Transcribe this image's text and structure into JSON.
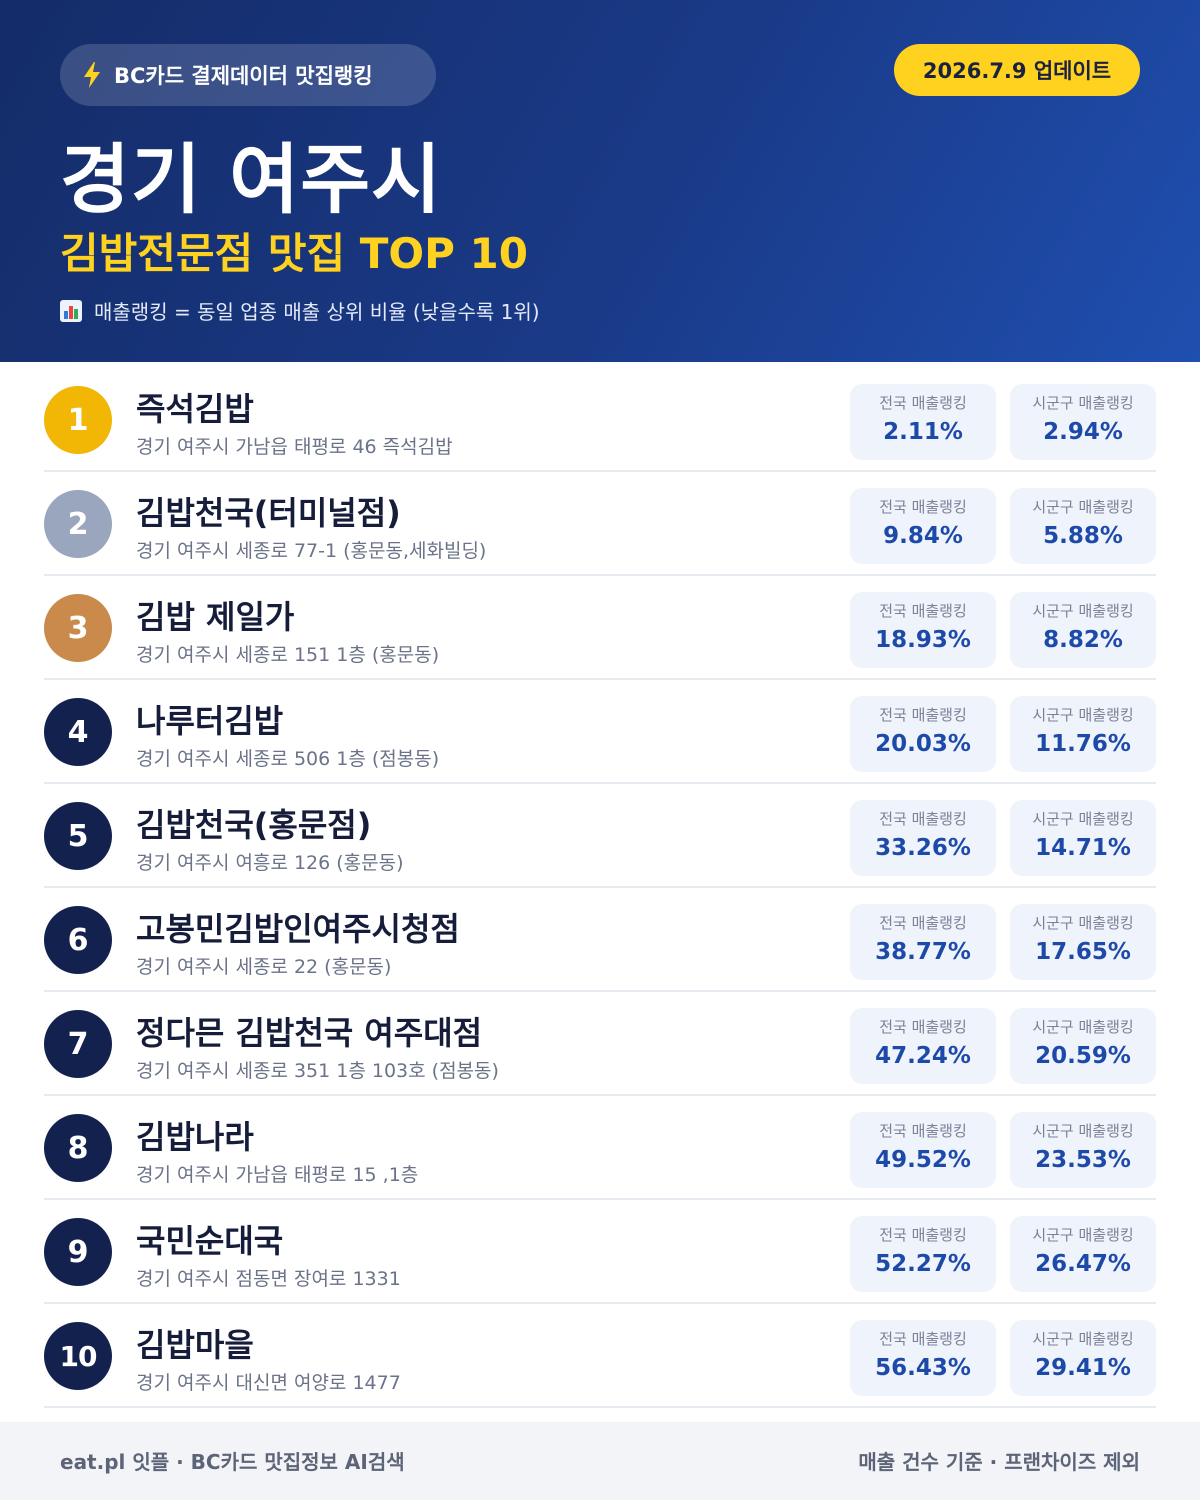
{
  "header": {
    "source_label": "BC카드 결제데이터 맛집랭킹",
    "update_label": "2026.7.9 업데이트",
    "title": "경기 여주시",
    "subtitle": "김밥전문점 맛집 TOP 10",
    "note": "매출랭킹 = 동일 업종 매출 상위 비율 (낮을수록 1위)",
    "icons": {
      "source": "lightning-bolt-icon",
      "note": "bar-chart-icon"
    }
  },
  "colors": {
    "gold": "#f2b705",
    "silver": "#9aa6bd",
    "bronze": "#c98a4b",
    "navy": "#13214f",
    "accent_yellow": "#ffd21f",
    "value_blue": "#1d4aa8"
  },
  "stat_labels": {
    "national": "전국 매출랭킹",
    "local": "시군구 매출랭킹"
  },
  "restaurants": [
    {
      "rank": "1",
      "name": "즉석김밥",
      "address": "경기 여주시 가남읍 태평로 46 즉석김밥",
      "national": "2.11%",
      "local": "2.94%"
    },
    {
      "rank": "2",
      "name": "김밥천국(터미널점)",
      "address": "경기 여주시 세종로 77-1 (홍문동,세화빌딩)",
      "national": "9.84%",
      "local": "5.88%"
    },
    {
      "rank": "3",
      "name": "김밥 제일가",
      "address": "경기 여주시 세종로 151 1층 (홍문동)",
      "national": "18.93%",
      "local": "8.82%"
    },
    {
      "rank": "4",
      "name": "나루터김밥",
      "address": "경기 여주시 세종로 506 1층 (점봉동)",
      "national": "20.03%",
      "local": "11.76%"
    },
    {
      "rank": "5",
      "name": "김밥천국(홍문점)",
      "address": "경기 여주시 여흥로 126 (홍문동)",
      "national": "33.26%",
      "local": "14.71%"
    },
    {
      "rank": "6",
      "name": "고봉민김밥인여주시청점",
      "address": "경기 여주시 세종로 22 (홍문동)",
      "national": "38.77%",
      "local": "17.65%"
    },
    {
      "rank": "7",
      "name": "정다믄 김밥천국 여주대점",
      "address": "경기 여주시 세종로 351 1층 103호 (점봉동)",
      "national": "47.24%",
      "local": "20.59%"
    },
    {
      "rank": "8",
      "name": "김밥나라",
      "address": "경기 여주시 가남읍 태평로 15 ,1층",
      "national": "49.52%",
      "local": "23.53%"
    },
    {
      "rank": "9",
      "name": "국민순대국",
      "address": "경기 여주시 점동면 장여로 1331",
      "national": "52.27%",
      "local": "26.47%"
    },
    {
      "rank": "10",
      "name": "김밥마을",
      "address": "경기 여주시 대신면 여양로 1477",
      "national": "56.43%",
      "local": "29.41%"
    }
  ],
  "footer": {
    "left": "eat.pl 잇플 · BC카드 맛집정보 AI검색",
    "right": "매출 건수 기준 · 프랜차이즈 제외"
  }
}
